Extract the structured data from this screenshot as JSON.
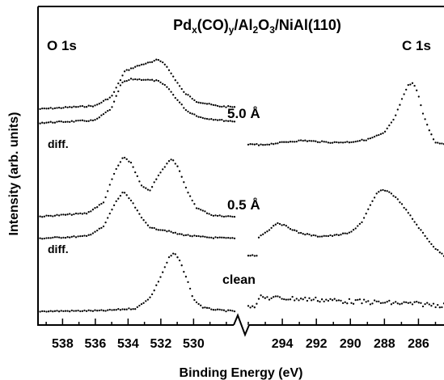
{
  "chart_data": {
    "type": "line",
    "title": {
      "pre": "Pd",
      "sub1": "x",
      "mid1": "(CO)",
      "sub2": "y",
      "mid2": "/Al",
      "sub3": "2",
      "mid3": "O",
      "sub4": "3",
      "post": "/NiAl(110)"
    },
    "xlabel": "Binding Energy (eV)",
    "ylabel": "Intensity (arb. units)",
    "panels": [
      {
        "name": "O 1s",
        "xlim": [
          539.5,
          527.5
        ],
        "ticks": [
          "538",
          "536",
          "534",
          "532",
          "530"
        ]
      },
      {
        "name": "C 1s",
        "xlim": [
          296.0,
          284.5
        ],
        "ticks": [
          "294",
          "292",
          "290",
          "288",
          "286"
        ]
      }
    ],
    "curve_labels": {
      "high": "5.0 Å",
      "low": "0.5 Å",
      "clean": "clean",
      "diff": "diff."
    },
    "series": [
      {
        "name": "5.0 Å",
        "panel": "O 1s",
        "points": [
          [
            539.5,
            0.0
          ],
          [
            536.0,
            0.08
          ],
          [
            535.0,
            0.3
          ],
          [
            534.2,
            0.9
          ],
          [
            533.6,
            1.0
          ],
          [
            533.0,
            1.08
          ],
          [
            532.5,
            1.12
          ],
          [
            532.2,
            1.18
          ],
          [
            531.8,
            1.1
          ],
          [
            531.2,
            0.75
          ],
          [
            530.6,
            0.4
          ],
          [
            529.8,
            0.18
          ],
          [
            528.5,
            0.07
          ],
          [
            527.5,
            0.05
          ]
        ]
      },
      {
        "name": "diff. (5.0 Å)",
        "panel": "O 1s",
        "points": [
          [
            539.5,
            0.0
          ],
          [
            536.0,
            0.06
          ],
          [
            535.0,
            0.35
          ],
          [
            534.4,
            0.95
          ],
          [
            533.8,
            1.04
          ],
          [
            533.0,
            1.03
          ],
          [
            532.2,
            1.0
          ],
          [
            531.6,
            0.85
          ],
          [
            531.0,
            0.55
          ],
          [
            530.4,
            0.28
          ],
          [
            529.5,
            0.12
          ],
          [
            528.0,
            0.05
          ],
          [
            527.5,
            0.04
          ]
        ]
      },
      {
        "name": "0.5 Å",
        "panel": "O 1s",
        "points": [
          [
            539.5,
            0.0
          ],
          [
            536.5,
            0.06
          ],
          [
            535.5,
            0.25
          ],
          [
            534.8,
            0.8
          ],
          [
            534.3,
            1.05
          ],
          [
            533.8,
            0.95
          ],
          [
            533.2,
            0.55
          ],
          [
            532.7,
            0.45
          ],
          [
            532.2,
            0.7
          ],
          [
            531.6,
            0.95
          ],
          [
            531.3,
            1.03
          ],
          [
            530.9,
            0.85
          ],
          [
            530.4,
            0.45
          ],
          [
            529.8,
            0.15
          ],
          [
            528.8,
            0.02
          ],
          [
            527.5,
            0.0
          ]
        ]
      },
      {
        "name": "diff. (0.5 Å)",
        "panel": "O 1s",
        "points": [
          [
            539.5,
            0.0
          ],
          [
            536.5,
            0.05
          ],
          [
            535.5,
            0.25
          ],
          [
            534.8,
            0.75
          ],
          [
            534.3,
            1.0
          ],
          [
            533.8,
            0.8
          ],
          [
            533.2,
            0.45
          ],
          [
            532.6,
            0.22
          ],
          [
            531.8,
            0.18
          ],
          [
            531.0,
            0.1
          ],
          [
            530.0,
            0.05
          ],
          [
            529.0,
            0.02
          ],
          [
            527.5,
            0.0
          ]
        ]
      },
      {
        "name": "clean",
        "panel": "O 1s",
        "points": [
          [
            539.5,
            0.0
          ],
          [
            535.5,
            0.01
          ],
          [
            533.5,
            0.05
          ],
          [
            532.6,
            0.25
          ],
          [
            532.0,
            0.6
          ],
          [
            531.5,
            0.92
          ],
          [
            531.2,
            1.0
          ],
          [
            530.9,
            0.9
          ],
          [
            530.4,
            0.55
          ],
          [
            530.0,
            0.2
          ],
          [
            529.4,
            0.06
          ],
          [
            528.5,
            0.02
          ],
          [
            527.5,
            0.0
          ]
        ]
      },
      {
        "name": "C 1s 5.0 Å",
        "panel": "C 1s",
        "points": [
          [
            295.5,
            0.0
          ],
          [
            294.5,
            0.04
          ],
          [
            293.5,
            0.08
          ],
          [
            292.8,
            0.1
          ],
          [
            292.0,
            0.08
          ],
          [
            291.0,
            0.06
          ],
          [
            290.0,
            0.07
          ],
          [
            289.0,
            0.12
          ],
          [
            288.0,
            0.25
          ],
          [
            287.4,
            0.55
          ],
          [
            287.0,
            0.9
          ],
          [
            286.6,
            1.2
          ],
          [
            286.3,
            1.25
          ],
          [
            286.0,
            1.0
          ],
          [
            285.7,
            0.6
          ],
          [
            285.3,
            0.25
          ],
          [
            285.0,
            0.06
          ],
          [
            284.5,
            0.02
          ]
        ]
      },
      {
        "name": "C 1s 0.5 Å",
        "panel": "C 1s",
        "points": [
          [
            295.5,
            0.0
          ],
          [
            294.8,
            0.15
          ],
          [
            294.3,
            0.28
          ],
          [
            293.8,
            0.22
          ],
          [
            293.0,
            0.1
          ],
          [
            292.0,
            0.04
          ],
          [
            291.0,
            0.05
          ],
          [
            290.0,
            0.1
          ],
          [
            289.3,
            0.3
          ],
          [
            288.8,
            0.6
          ],
          [
            288.4,
            0.82
          ],
          [
            288.0,
            0.86
          ],
          [
            287.6,
            0.8
          ],
          [
            287.1,
            0.65
          ],
          [
            286.6,
            0.45
          ],
          [
            286.0,
            0.2
          ],
          [
            285.5,
            0.0
          ],
          [
            285.0,
            -0.18
          ],
          [
            284.5,
            -0.3
          ]
        ]
      },
      {
        "name": "C 1s clean",
        "panel": "C 1s",
        "points": [
          [
            295.5,
            0.0
          ],
          [
            294.0,
            -0.01
          ],
          [
            292.0,
            -0.03
          ],
          [
            290.0,
            -0.06
          ],
          [
            288.0,
            -0.08
          ],
          [
            286.0,
            -0.1
          ],
          [
            284.5,
            -0.12
          ]
        ]
      }
    ]
  }
}
